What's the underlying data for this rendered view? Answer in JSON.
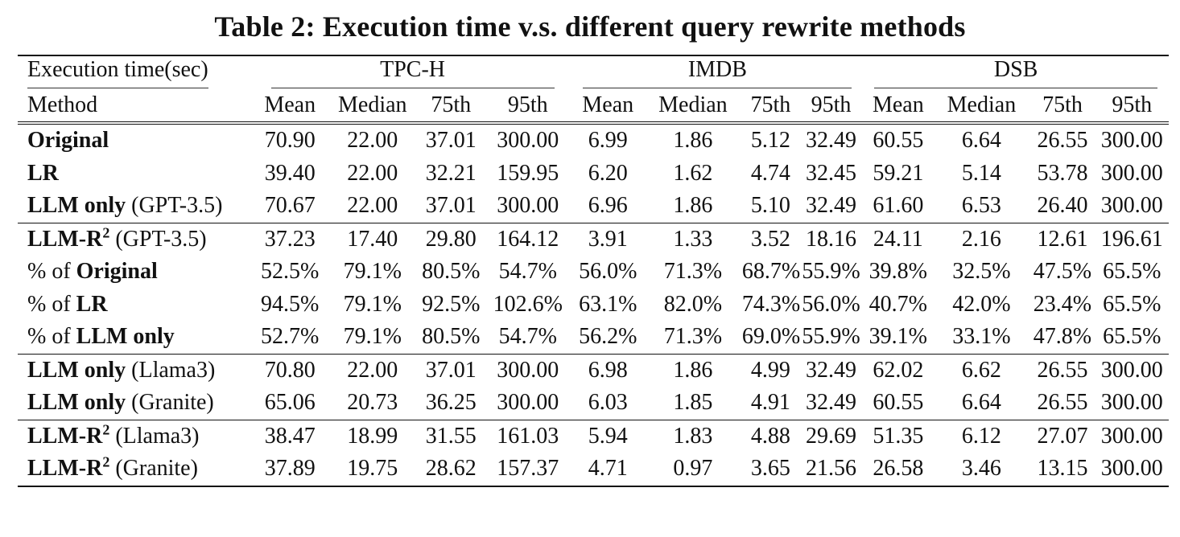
{
  "title": "Table 2: Execution time v.s. different query rewrite methods",
  "header": {
    "corner": "Execution time(sec)",
    "method_label": "Method",
    "groups": [
      "TPC-H",
      "IMDB",
      "DSB"
    ],
    "subcols": [
      "Mean",
      "Median",
      "75th",
      "95th"
    ]
  },
  "rows": [
    {
      "name": "Original",
      "paren": "",
      "sup": "",
      "name_bold": true,
      "section_start": "double",
      "cells": [
        "70.90",
        "22.00",
        "37.01",
        "300.00",
        "6.99",
        "1.86",
        "5.12",
        "32.49",
        "60.55",
        "6.64",
        "26.55",
        "300.00"
      ],
      "bold": []
    },
    {
      "name": "LR",
      "paren": "",
      "sup": "",
      "name_bold": true,
      "cells": [
        "39.40",
        "22.00",
        "32.21",
        "159.95",
        "6.20",
        "1.62",
        "4.74",
        "32.45",
        "59.21",
        "5.14",
        "53.78",
        "300.00"
      ],
      "bold": [
        3
      ]
    },
    {
      "name": "LLM only",
      "paren": " (GPT-3.5)",
      "sup": "",
      "name_bold": true,
      "cells": [
        "70.67",
        "22.00",
        "37.01",
        "300.00",
        "6.96",
        "1.86",
        "5.10",
        "32.49",
        "61.60",
        "6.53",
        "26.40",
        "300.00"
      ],
      "bold": []
    },
    {
      "name": "LLM-R",
      "paren": " (GPT-3.5)",
      "sup": "2",
      "name_bold": true,
      "section_start": "mid",
      "cells": [
        "37.23",
        "17.40",
        "29.80",
        "164.12",
        "3.91",
        "1.33",
        "3.52",
        "18.16",
        "24.11",
        "2.16",
        "12.61",
        "196.61"
      ],
      "bold": [
        0,
        1,
        2,
        4,
        5,
        6,
        7,
        8,
        9,
        10,
        11
      ]
    },
    {
      "name": "Original",
      "prefix": "% of ",
      "paren": "",
      "sup": "",
      "name_bold": true,
      "cells": [
        "52.5%",
        "79.1%",
        "80.5%",
        "54.7%",
        "56.0%",
        "71.3%",
        "68.7%",
        "55.9%",
        "39.8%",
        "32.5%",
        "47.5%",
        "65.5%"
      ],
      "bold": []
    },
    {
      "name": "LR",
      "prefix": "% of ",
      "paren": "",
      "sup": "",
      "name_bold": true,
      "cells": [
        "94.5%",
        "79.1%",
        "92.5%",
        "102.6%",
        "63.1%",
        "82.0%",
        "74.3%",
        "56.0%",
        "40.7%",
        "42.0%",
        "23.4%",
        "65.5%"
      ],
      "bold": []
    },
    {
      "name": "LLM only",
      "prefix": "% of ",
      "paren": "",
      "sup": "",
      "name_bold": true,
      "cells": [
        "52.7%",
        "79.1%",
        "80.5%",
        "54.7%",
        "56.2%",
        "71.3%",
        "69.0%",
        "55.9%",
        "39.1%",
        "33.1%",
        "47.8%",
        "65.5%"
      ],
      "bold": []
    },
    {
      "name": "LLM only",
      "paren": " (Llama3)",
      "sup": "",
      "name_bold": true,
      "section_start": "mid",
      "cells": [
        "70.80",
        "22.00",
        "37.01",
        "300.00",
        "6.98",
        "1.86",
        "4.99",
        "32.49",
        "62.02",
        "6.62",
        "26.55",
        "300.00"
      ],
      "bold": []
    },
    {
      "name": "LLM only",
      "paren": " (Granite)",
      "sup": "",
      "name_bold": true,
      "cells": [
        "65.06",
        "20.73",
        "36.25",
        "300.00",
        "6.03",
        "1.85",
        "4.91",
        "32.49",
        "60.55",
        "6.64",
        "26.55",
        "300.00"
      ],
      "bold": []
    },
    {
      "name": "LLM-R",
      "paren": " (Llama3)",
      "sup": "2",
      "name_bold": true,
      "section_start": "mid",
      "cells": [
        "38.47",
        "18.99",
        "31.55",
        "161.03",
        "5.94",
        "1.83",
        "4.88",
        "29.69",
        "51.35",
        "6.12",
        "27.07",
        "300.00"
      ],
      "bold": [
        1,
        11
      ]
    },
    {
      "name": "LLM-R",
      "paren": " (Granite)",
      "sup": "2",
      "name_bold": true,
      "cells": [
        "37.89",
        "19.75",
        "28.62",
        "157.37",
        "4.71",
        "0.97",
        "3.65",
        "21.56",
        "26.58",
        "3.46",
        "13.15",
        "300.00"
      ],
      "bold": [
        0,
        2,
        3,
        4,
        5,
        6,
        7,
        8,
        9,
        10,
        11
      ]
    }
  ]
}
